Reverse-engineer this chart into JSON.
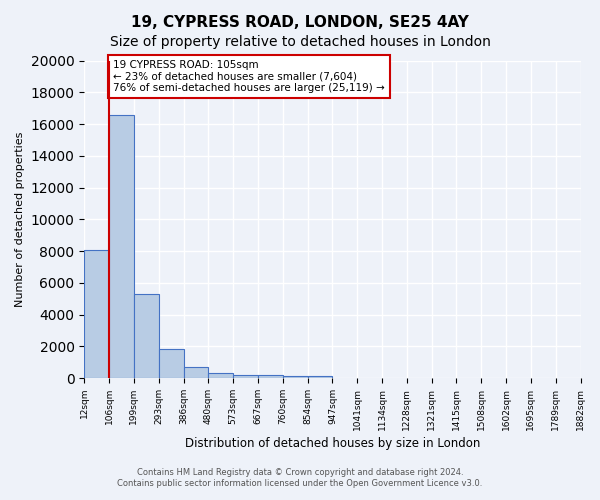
{
  "title1": "19, CYPRESS ROAD, LONDON, SE25 4AY",
  "title2": "Size of property relative to detached houses in London",
  "xlabel": "Distribution of detached houses by size in London",
  "ylabel": "Number of detached properties",
  "bin_labels": [
    "12sqm",
    "106sqm",
    "199sqm",
    "293sqm",
    "386sqm",
    "480sqm",
    "573sqm",
    "667sqm",
    "760sqm",
    "854sqm",
    "947sqm",
    "1041sqm",
    "1134sqm",
    "1228sqm",
    "1321sqm",
    "1415sqm",
    "1508sqm",
    "1602sqm",
    "1695sqm",
    "1789sqm",
    "1882sqm"
  ],
  "bar_heights": [
    8100,
    16600,
    5300,
    1850,
    700,
    300,
    220,
    190,
    170,
    160,
    0,
    0,
    0,
    0,
    0,
    0,
    0,
    0,
    0,
    0
  ],
  "bar_color": "#b8cce4",
  "bar_edge_color": "#4472c4",
  "property_line_x": 1,
  "property_line_label": "19 CYPRESS ROAD: 105sqm",
  "annotation_line1": "← 23% of detached houses are smaller (7,604)",
  "annotation_line2": "76% of semi-detached houses are larger (25,119) →",
  "annotation_box_color": "#ffffff",
  "annotation_box_edge": "#cc0000",
  "vline_color": "#cc0000",
  "ylim": [
    0,
    20000
  ],
  "yticks": [
    0,
    2000,
    4000,
    6000,
    8000,
    10000,
    12000,
    14000,
    16000,
    18000,
    20000
  ],
  "footer1": "Contains HM Land Registry data © Crown copyright and database right 2024.",
  "footer2": "Contains public sector information licensed under the Open Government Licence v3.0.",
  "bg_color": "#eef2f9",
  "grid_color": "#ffffff",
  "title1_fontsize": 11,
  "title2_fontsize": 10
}
